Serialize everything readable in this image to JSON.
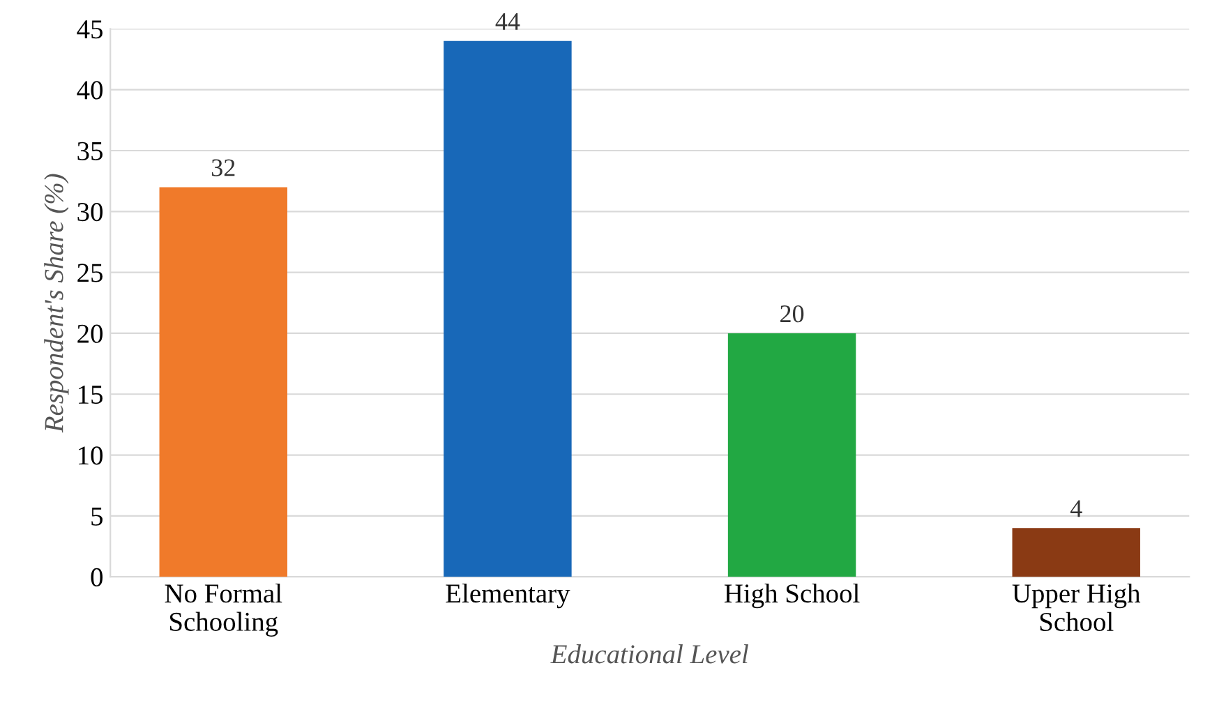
{
  "chart_data": {
    "type": "bar",
    "xlabel": "Educational Level",
    "ylabel": "Respondent's Share (%)",
    "categories": [
      "No Formal\nSchooling",
      "Elementary",
      "High School",
      "Upper High\nSchool"
    ],
    "values": [
      32,
      44,
      20,
      4
    ],
    "colors": [
      "#f07a2a",
      "#1868b8",
      "#22a843",
      "#8a3a14"
    ],
    "ylim": [
      0,
      45
    ],
    "yticks": [
      0,
      5,
      10,
      15,
      20,
      25,
      30,
      35,
      40,
      45
    ],
    "grid": "y",
    "data_labels": true
  }
}
